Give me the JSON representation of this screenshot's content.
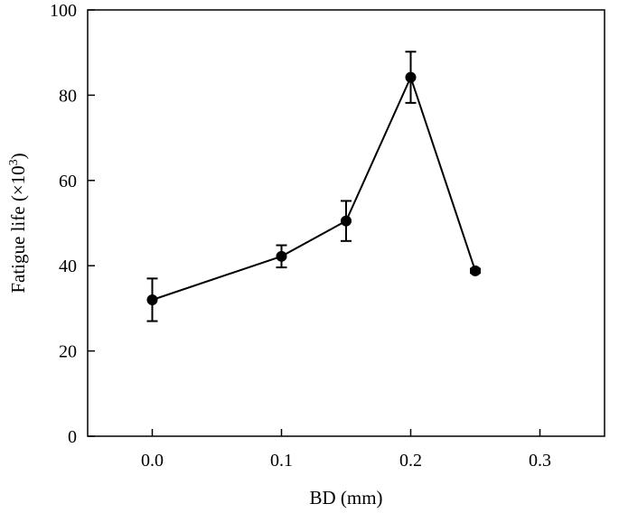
{
  "chart_data": {
    "type": "line",
    "title": "",
    "xlabel": "BD (mm)",
    "ylabel_main": "Fatigue life (×10",
    "ylabel_sup": "3",
    "ylabel_close": ")",
    "xlim": [
      -0.05,
      0.35
    ],
    "ylim": [
      0,
      100
    ],
    "xticks": [
      0.0,
      0.1,
      0.2,
      0.3
    ],
    "xtick_labels": [
      "0.0",
      "0.1",
      "0.2",
      "0.3"
    ],
    "yticks": [
      0,
      20,
      40,
      60,
      80,
      100
    ],
    "ytick_labels": [
      "0",
      "20",
      "40",
      "60",
      "80",
      "100"
    ],
    "grid": false,
    "series": [
      {
        "x": [
          0.0,
          0.1,
          0.15,
          0.2,
          0.25
        ],
        "y": [
          32,
          42.2,
          50.5,
          84.2,
          38.8
        ],
        "err_low": [
          27,
          39.6,
          45.8,
          78.2,
          38.3
        ],
        "err_high": [
          37,
          44.8,
          55.2,
          90.2,
          39.3
        ],
        "color": "#000000"
      }
    ]
  }
}
